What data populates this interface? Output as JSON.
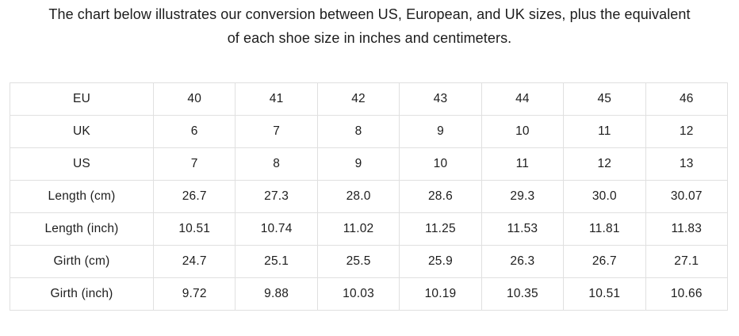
{
  "heading": {
    "line1": "The chart below illustrates our conversion between US, European, and UK sizes, plus the equivalent",
    "line2": "of each shoe size in inches and centimeters."
  },
  "colors": {
    "background": "#ffffff",
    "text": "#1d1d1d",
    "table_border": "#e0e0e0"
  },
  "chart_data": {
    "type": "table",
    "title": "Shoe size conversion chart (US / EU / UK with length and girth equivalents)",
    "rows": [
      {
        "label": "EU",
        "values": [
          "40",
          "41",
          "42",
          "43",
          "44",
          "45",
          "46"
        ]
      },
      {
        "label": "UK",
        "values": [
          "6",
          "7",
          "8",
          "9",
          "10",
          "11",
          "12"
        ]
      },
      {
        "label": "US",
        "values": [
          "7",
          "8",
          "9",
          "10",
          "11",
          "12",
          "13"
        ]
      },
      {
        "label": "Length (cm)",
        "values": [
          "26.7",
          "27.3",
          "28.0",
          "28.6",
          "29.3",
          "30.0",
          "30.07"
        ]
      },
      {
        "label": "Length (inch)",
        "values": [
          "10.51",
          "10.74",
          "11.02",
          "11.25",
          "11.53",
          "11.81",
          "11.83"
        ]
      },
      {
        "label": "Girth (cm)",
        "values": [
          "24.7",
          "25.1",
          "25.5",
          "25.9",
          "26.3",
          "26.7",
          "27.1"
        ]
      },
      {
        "label": "Girth (inch)",
        "values": [
          "9.72",
          "9.88",
          "10.03",
          "10.19",
          "10.35",
          "10.51",
          "10.66"
        ]
      }
    ]
  }
}
